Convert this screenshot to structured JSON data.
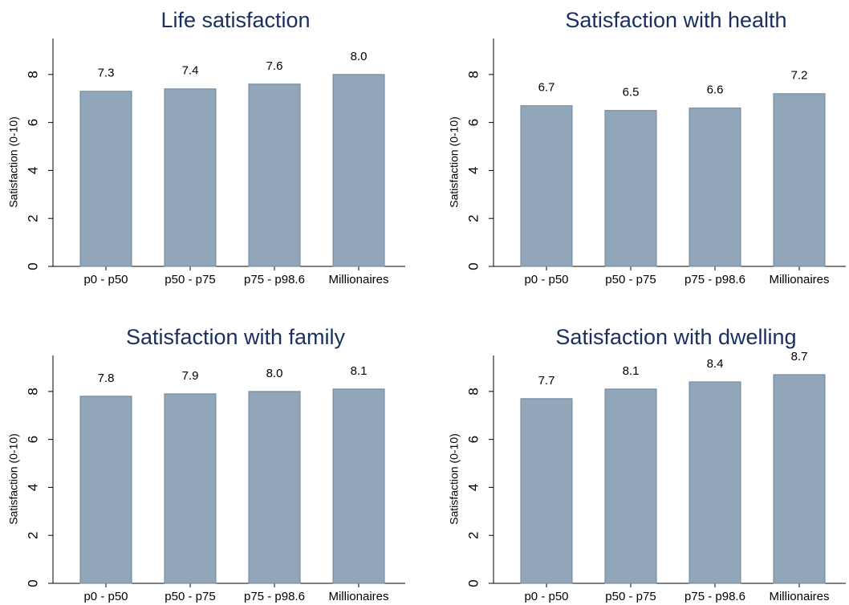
{
  "chart_data": [
    {
      "type": "bar",
      "title": "Life satisfaction",
      "ylabel": "Satisfaction (0-10)",
      "categories": [
        "p0 - p50",
        "p50 - p75",
        "p75 - p98.6",
        "Millionaires"
      ],
      "values": [
        7.3,
        7.4,
        7.6,
        8.0
      ],
      "value_labels": [
        "7.3",
        "7.4",
        "7.6",
        "8.0"
      ],
      "color": "#91a6b8",
      "ylim": [
        0,
        9.5
      ],
      "yticks": [
        0,
        2,
        4,
        6,
        8
      ]
    },
    {
      "type": "bar",
      "title": "Satisfaction with health",
      "ylabel": "Satisfaction (0-10)",
      "categories": [
        "p0 - p50",
        "p50 - p75",
        "p75 - p98.6",
        "Millionaires"
      ],
      "values": [
        6.7,
        6.5,
        6.6,
        7.2
      ],
      "value_labels": [
        "6.7",
        "6.5",
        "6.6",
        "7.2"
      ],
      "color": "#91a6b8",
      "ylim": [
        0,
        9.5
      ],
      "yticks": [
        0,
        2,
        4,
        6,
        8
      ]
    },
    {
      "type": "bar",
      "title": "Satisfaction with family",
      "ylabel": "Satisfaction (0-10)",
      "categories": [
        "p0 - p50",
        "p50 - p75",
        "p75 - p98.6",
        "Millionaires"
      ],
      "values": [
        7.8,
        7.9,
        8.0,
        8.1
      ],
      "value_labels": [
        "7.8",
        "7.9",
        "8.0",
        "8.1"
      ],
      "color": "#91a6b8",
      "ylim": [
        0,
        9.5
      ],
      "yticks": [
        0,
        2,
        4,
        6,
        8
      ]
    },
    {
      "type": "bar",
      "title": "Satisfaction with dwelling",
      "ylabel": "Satisfaction (0-10)",
      "categories": [
        "p0 - p50",
        "p50 - p75",
        "p75 - p98.6",
        "Millionaires"
      ],
      "values": [
        7.7,
        8.1,
        8.4,
        8.7
      ],
      "value_labels": [
        "7.7",
        "8.1",
        "8.4",
        "8.7"
      ],
      "color": "#91a6b8",
      "ylim": [
        0,
        9.5
      ],
      "yticks": [
        0,
        2,
        4,
        6,
        8
      ]
    }
  ]
}
